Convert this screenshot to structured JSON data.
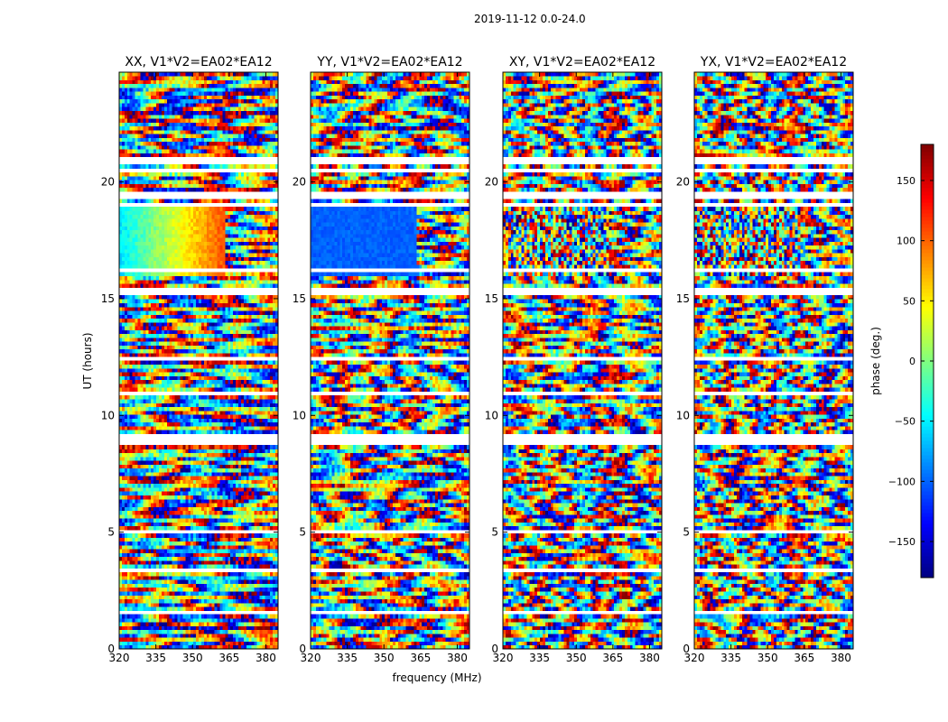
{
  "figure": {
    "suptitle": "2019-11-12 0.0-24.0"
  },
  "chart_data": {
    "type": "heatmap",
    "subtitle": "2019-11-12 0.0-24.0",
    "xlabel": "frequency (MHz)",
    "ylabel": "UT (hours)",
    "xlim": [
      320,
      385
    ],
    "ylim": [
      0,
      24.7
    ],
    "xticks": [
      320,
      335,
      350,
      365,
      380
    ],
    "yticks": [
      0,
      5,
      10,
      15,
      20
    ],
    "panels": [
      {
        "title": "XX, V1*V2=EA02*EA12",
        "correlation": "XX"
      },
      {
        "title": "YY, V1*V2=EA02*EA12",
        "correlation": "YY"
      },
      {
        "title": "XY, V1*V2=EA02*EA12",
        "correlation": "XY"
      },
      {
        "title": "YX, V1*V2=EA02*EA12",
        "correlation": "YX"
      }
    ],
    "colorbar": {
      "label": "phase (deg.)",
      "range": [
        -180,
        180
      ],
      "ticks": [
        150,
        100,
        50,
        0,
        -50,
        -100,
        -150
      ],
      "colormap": "jet"
    },
    "flagged_gaps_hours": [
      [
        0.3,
        0.4
      ],
      [
        1.5,
        1.7
      ],
      [
        3.3,
        3.5
      ],
      [
        4.9,
        5.1
      ],
      [
        8.8,
        9.2
      ],
      [
        10.9,
        11.0
      ],
      [
        12.3,
        12.5
      ],
      [
        15.2,
        15.4
      ],
      [
        16.2,
        16.3
      ],
      [
        18.9,
        19.1
      ],
      [
        19.3,
        19.6
      ],
      [
        19.9,
        20.0
      ],
      [
        20.4,
        20.6
      ],
      [
        20.7,
        21.0
      ]
    ],
    "coherent_block": {
      "t_range": [
        16.0,
        18.9
      ],
      "f_break_mhz": 363
    },
    "grid": false,
    "legend": "none"
  },
  "colors": {
    "frame": "#000000",
    "background": "#ffffff",
    "gap": "#ffffff"
  }
}
